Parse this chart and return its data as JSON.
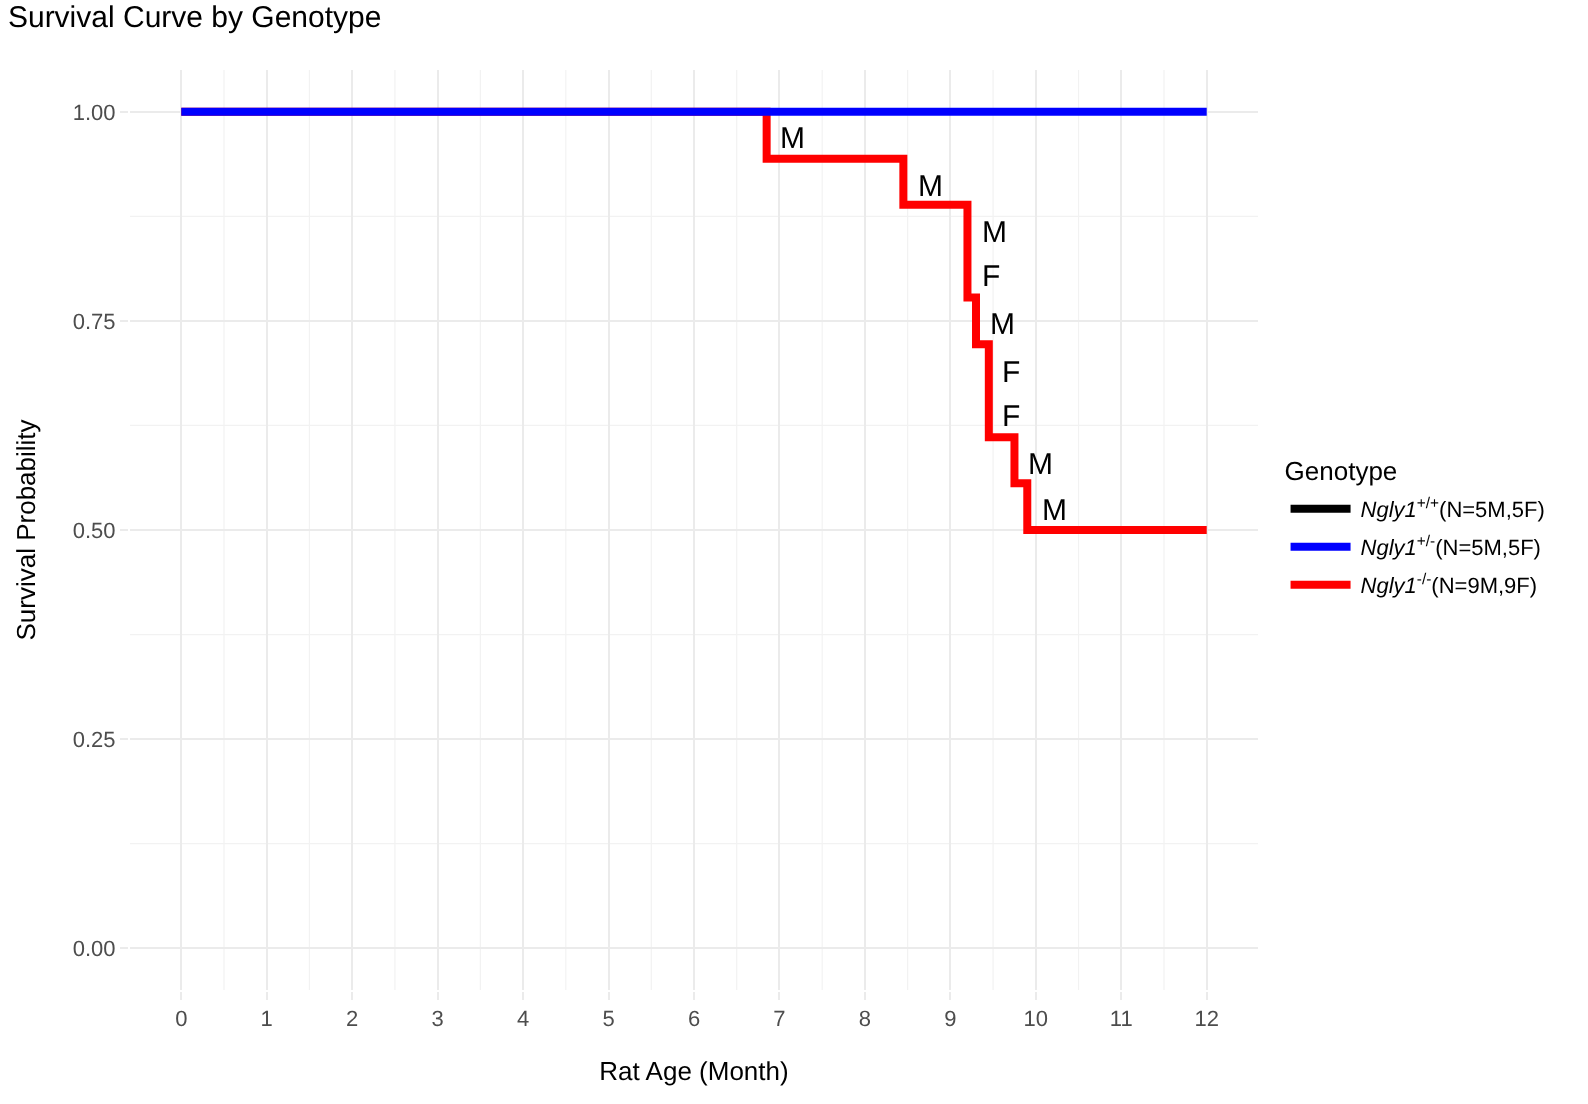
{
  "chart_data": {
    "type": "step",
    "title": "Survival Curve by Genotype",
    "xlabel": "Rat Age (Month)",
    "ylabel": "Survival Probability",
    "legend_title": "Genotype",
    "series": [
      {
        "name": "Ngly1$^{+/+}$(N=5M,5F)",
        "color": "#000000"
      },
      {
        "name": "Ngly1$^{+/-}$(N=5M,5F)",
        "color": "#0000ff",
        "x": [
          0,
          12
        ],
        "values": [
          1.0,
          1.0
        ]
      },
      {
        "name": "Ngly1$^{-/-}$(N=9M,9F)",
        "color": "#ff0000",
        "x": [
          0,
          6.85,
          8.45,
          9.2,
          9.3,
          9.45,
          9.75,
          9.9,
          12
        ],
        "values": [
          1.0,
          0.944,
          0.889,
          0.778,
          0.722,
          0.611,
          0.556,
          0.5,
          0.5
        ]
      }
    ],
    "annotations": [
      {
        "text": "M",
        "x": 6.85,
        "y": 1.0
      },
      {
        "text": "M",
        "x": 8.45,
        "y": 0.944
      },
      {
        "text": "M",
        "x": 9.2,
        "y": 0.889
      },
      {
        "text": "F",
        "x": 9.2,
        "y": 0.778
      },
      {
        "text": "M",
        "x": 9.3,
        "y": 0.778
      },
      {
        "text": "F",
        "x": 9.45,
        "y": 0.722
      },
      {
        "text": "F",
        "x": 9.45,
        "y": 0.611
      },
      {
        "text": "M",
        "x": 9.75,
        "y": 0.611
      },
      {
        "text": "M",
        "x": 9.9,
        "y": 0.556
      }
    ],
    "xlim": [
      -0.6,
      12.6
    ],
    "xticks": [
      0,
      1,
      2,
      3,
      4,
      5,
      6,
      7,
      8,
      9,
      10,
      11,
      12
    ],
    "ylim": [
      -0.05,
      1.05
    ],
    "yticks": [
      {
        "value": 0,
        "label": "0.00"
      },
      {
        "value": 0.25,
        "label": "0.25"
      },
      {
        "value": 0.5,
        "label": "0.50"
      },
      {
        "value": 0.75,
        "label": "0.75"
      },
      {
        "value": 1,
        "label": "1.00"
      }
    ],
    "grid": true,
    "legend": "right",
    "line_style": "solid",
    "marker": "none"
  }
}
